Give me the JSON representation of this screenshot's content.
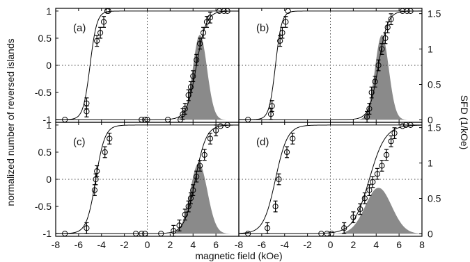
{
  "chart_data": {
    "type": "scatter",
    "xlabel": "magnetic field (kOe)",
    "ylabel_left": "normalized number of reversed islands",
    "ylabel_right": "SFD (1/kOe)",
    "xlim": [
      -8,
      8
    ],
    "ylim_left": [
      -1.05,
      1.05
    ],
    "ylim_right": [
      -0.035,
      1.575
    ],
    "x_ticks": [
      -8,
      -6,
      -4,
      -2,
      0,
      2,
      4,
      6,
      8
    ],
    "y_ticks_left": [
      -1,
      -0.5,
      0,
      0.5,
      1
    ],
    "y_ticks_right": [
      0,
      0.5,
      1,
      1.5
    ],
    "grid": false,
    "panels": [
      {
        "label": "(a)",
        "left_branch": {
          "center": -5.0,
          "width": 0.6
        },
        "right_branch": {
          "center": 4.3,
          "width": 0.85
        },
        "sfd": {
          "center": 4.6,
          "sigma": 0.62,
          "peak": 1.2
        },
        "points": [
          {
            "x": -7.2,
            "y": -1.0
          },
          {
            "x": -5.3,
            "y": -0.85
          },
          {
            "x": -5.3,
            "y": -0.7
          },
          {
            "x": -4.4,
            "y": 0.45
          },
          {
            "x": -4.1,
            "y": 0.6
          },
          {
            "x": -3.8,
            "y": 0.8
          },
          {
            "x": -3.5,
            "y": 1.0
          },
          {
            "x": -3.4,
            "y": 1.0
          },
          {
            "x": -0.5,
            "y": -1.0
          },
          {
            "x": -0.2,
            "y": -1.0
          },
          {
            "x": 0.0,
            "y": -1.0
          },
          {
            "x": 1.8,
            "y": -1.0
          },
          {
            "x": 2.9,
            "y": -1.0
          },
          {
            "x": 3.1,
            "y": -0.9
          },
          {
            "x": 3.3,
            "y": -0.8
          },
          {
            "x": 3.6,
            "y": -0.55
          },
          {
            "x": 3.8,
            "y": -0.4
          },
          {
            "x": 4.0,
            "y": -0.2
          },
          {
            "x": 4.3,
            "y": 0.1
          },
          {
            "x": 4.6,
            "y": 0.4
          },
          {
            "x": 4.9,
            "y": 0.6
          },
          {
            "x": 5.2,
            "y": 0.8
          },
          {
            "x": 5.5,
            "y": 0.88
          },
          {
            "x": 6.3,
            "y": 1.0
          },
          {
            "x": 6.7,
            "y": 1.0
          },
          {
            "x": 7.0,
            "y": 1.0
          }
        ]
      },
      {
        "label": "(b)",
        "left_branch": {
          "center": -4.8,
          "width": 0.55
        },
        "right_branch": {
          "center": 4.2,
          "width": 0.8
        },
        "sfd": {
          "center": 4.5,
          "sigma": 0.6,
          "peak": 1.2
        },
        "points": [
          {
            "x": -7.2,
            "y": -1.0
          },
          {
            "x": -5.2,
            "y": -0.9
          },
          {
            "x": -5.1,
            "y": -0.75
          },
          {
            "x": -4.4,
            "y": 0.45
          },
          {
            "x": -4.2,
            "y": 0.6
          },
          {
            "x": -3.9,
            "y": 0.8
          },
          {
            "x": -3.7,
            "y": 1.0
          },
          {
            "x": 3.2,
            "y": -0.95
          },
          {
            "x": 3.4,
            "y": -0.8
          },
          {
            "x": 3.6,
            "y": -0.5
          },
          {
            "x": 3.9,
            "y": -0.3
          },
          {
            "x": 4.2,
            "y": 0.0
          },
          {
            "x": 4.5,
            "y": 0.3
          },
          {
            "x": 4.8,
            "y": 0.5
          },
          {
            "x": 5.0,
            "y": 0.7
          },
          {
            "x": 5.3,
            "y": 0.85
          },
          {
            "x": 6.3,
            "y": 1.0
          },
          {
            "x": 6.7,
            "y": 1.0
          },
          {
            "x": 7.0,
            "y": 1.0
          }
        ]
      },
      {
        "label": "(c)",
        "left_branch": {
          "center": -4.5,
          "width": 0.8
        },
        "right_branch": {
          "center": 4.2,
          "width": 0.95
        },
        "sfd": {
          "center": 4.5,
          "sigma": 0.75,
          "peak": 1.0
        },
        "points": [
          {
            "x": -7.2,
            "y": -1.0
          },
          {
            "x": -5.3,
            "y": -0.9
          },
          {
            "x": -4.6,
            "y": -0.2
          },
          {
            "x": -4.5,
            "y": 0.0
          },
          {
            "x": -4.4,
            "y": 0.15
          },
          {
            "x": -3.7,
            "y": 0.5
          },
          {
            "x": -3.3,
            "y": 0.75
          },
          {
            "x": -1.0,
            "y": -1.0
          },
          {
            "x": -0.5,
            "y": -1.0
          },
          {
            "x": -0.2,
            "y": -1.0
          },
          {
            "x": 1.2,
            "y": -1.0
          },
          {
            "x": 2.3,
            "y": -0.95
          },
          {
            "x": 2.8,
            "y": -0.85
          },
          {
            "x": 3.3,
            "y": -0.65
          },
          {
            "x": 3.6,
            "y": -0.5
          },
          {
            "x": 3.8,
            "y": -0.35
          },
          {
            "x": 4.0,
            "y": -0.2
          },
          {
            "x": 4.3,
            "y": 0.05
          },
          {
            "x": 4.6,
            "y": 0.25
          },
          {
            "x": 5.0,
            "y": 0.45
          },
          {
            "x": 5.5,
            "y": 0.75
          },
          {
            "x": 6.0,
            "y": 0.9
          },
          {
            "x": 6.4,
            "y": 0.98
          },
          {
            "x": 7.0,
            "y": 1.0
          }
        ]
      },
      {
        "label": "(d)",
        "left_branch": {
          "center": -4.8,
          "width": 1.05
        },
        "right_branch": {
          "center": 3.4,
          "width": 1.4
        },
        "sfd": {
          "center": 4.2,
          "sigma": 1.15,
          "peak": 0.65
        },
        "points": [
          {
            "x": -7.2,
            "y": -1.0
          },
          {
            "x": -5.5,
            "y": -0.9
          },
          {
            "x": -4.8,
            "y": -0.5
          },
          {
            "x": -4.5,
            "y": 0.0
          },
          {
            "x": -3.8,
            "y": 0.5
          },
          {
            "x": -3.3,
            "y": 0.75
          },
          {
            "x": -0.8,
            "y": -1.0
          },
          {
            "x": -0.3,
            "y": -1.0
          },
          {
            "x": 0.1,
            "y": -1.0
          },
          {
            "x": 1.2,
            "y": -0.9
          },
          {
            "x": 2.0,
            "y": -0.7
          },
          {
            "x": 2.6,
            "y": -0.55
          },
          {
            "x": 3.0,
            "y": -0.35
          },
          {
            "x": 3.4,
            "y": -0.2
          },
          {
            "x": 3.7,
            "y": -0.05
          },
          {
            "x": 4.1,
            "y": 0.1
          },
          {
            "x": 4.5,
            "y": 0.25
          },
          {
            "x": 4.9,
            "y": 0.45
          },
          {
            "x": 5.3,
            "y": 0.7
          },
          {
            "x": 5.6,
            "y": 0.85
          },
          {
            "x": 6.3,
            "y": 0.98
          },
          {
            "x": 6.6,
            "y": 1.0
          },
          {
            "x": 7.0,
            "y": 1.0
          }
        ]
      }
    ]
  },
  "colors": {
    "sfd_fill": "#8a8a8a",
    "line": "#000000",
    "guide": "#444444"
  }
}
